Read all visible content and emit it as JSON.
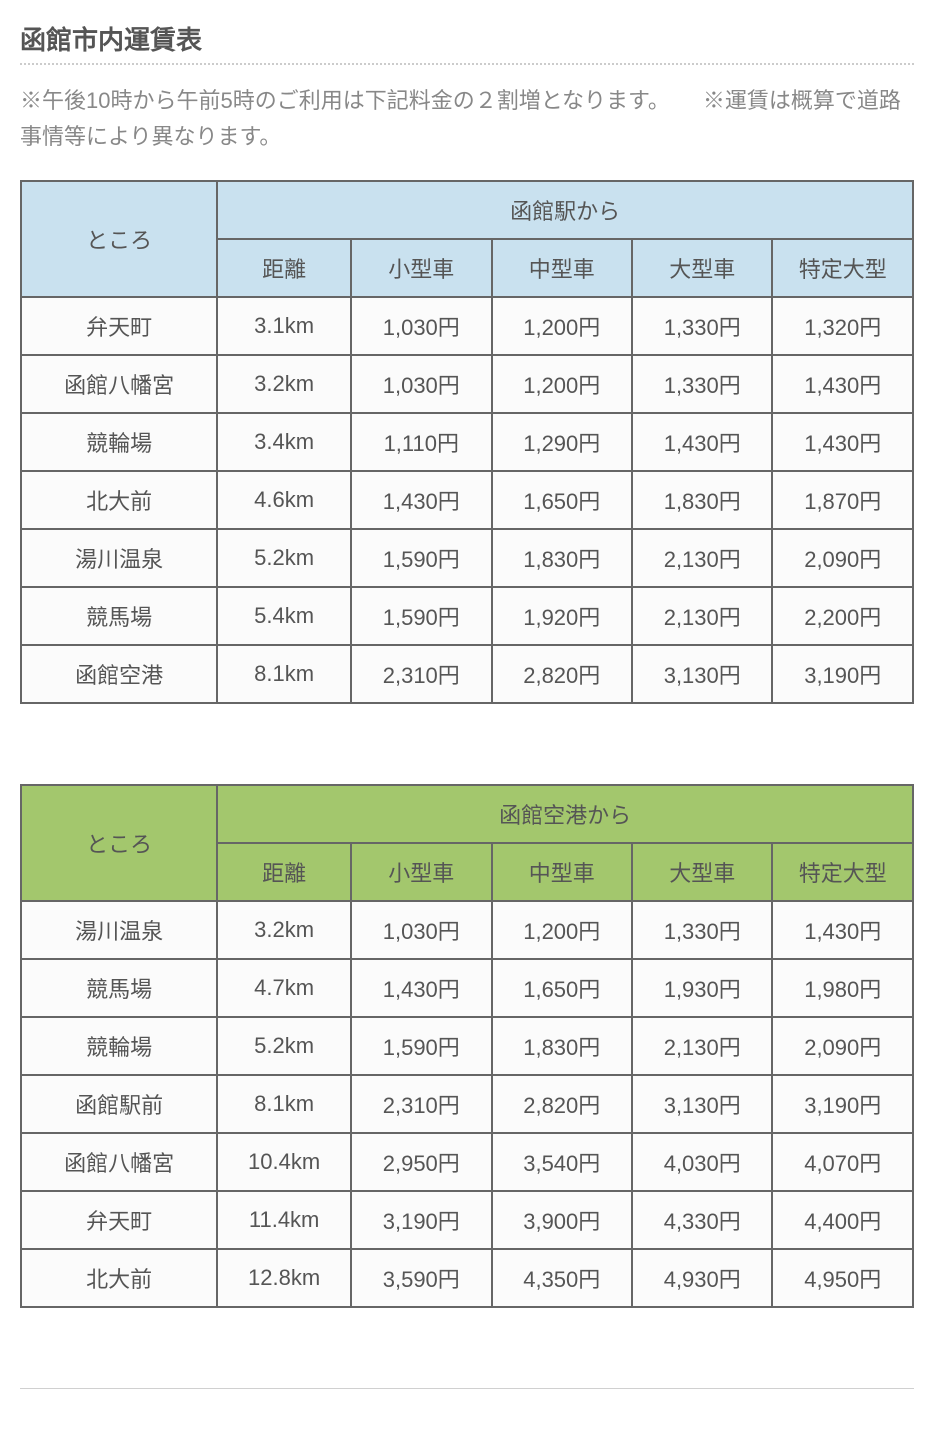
{
  "title": "函館市内運賃表",
  "note": "※午後10時から午前5時のご利用は下記料金の２割増となります。　　※運賃は概算で道路事情等により異なります。",
  "tables": [
    {
      "header_class": "th-blue",
      "place_header": "ところ",
      "from_header": "函館駅から",
      "sub_headers": [
        "距離",
        "小型車",
        "中型車",
        "大型車",
        "特定大型"
      ],
      "rows": [
        {
          "place": "弁天町",
          "dist": "3.1km",
          "v": [
            "1,030円",
            "1,200円",
            "1,330円",
            "1,320円"
          ]
        },
        {
          "place": "函館八幡宮",
          "dist": "3.2km",
          "v": [
            "1,030円",
            "1,200円",
            "1,330円",
            "1,430円"
          ]
        },
        {
          "place": "競輪場",
          "dist": "3.4km",
          "v": [
            "1,110円",
            "1,290円",
            "1,430円",
            "1,430円"
          ]
        },
        {
          "place": "北大前",
          "dist": "4.6km",
          "v": [
            "1,430円",
            "1,650円",
            "1,830円",
            "1,870円"
          ]
        },
        {
          "place": "湯川温泉",
          "dist": "5.2km",
          "v": [
            "1,590円",
            "1,830円",
            "2,130円",
            "2,090円"
          ]
        },
        {
          "place": "競馬場",
          "dist": "5.4km",
          "v": [
            "1,590円",
            "1,920円",
            "2,130円",
            "2,200円"
          ]
        },
        {
          "place": "函館空港",
          "dist": "8.1km",
          "v": [
            "2,310円",
            "2,820円",
            "3,130円",
            "3,190円"
          ]
        }
      ]
    },
    {
      "header_class": "th-green",
      "place_header": "ところ",
      "from_header": "函館空港から",
      "sub_headers": [
        "距離",
        "小型車",
        "中型車",
        "大型車",
        "特定大型"
      ],
      "rows": [
        {
          "place": "湯川温泉",
          "dist": "3.2km",
          "v": [
            "1,030円",
            "1,200円",
            "1,330円",
            "1,430円"
          ]
        },
        {
          "place": "競馬場",
          "dist": "4.7km",
          "v": [
            "1,430円",
            "1,650円",
            "1,930円",
            "1,980円"
          ]
        },
        {
          "place": "競輪場",
          "dist": "5.2km",
          "v": [
            "1,590円",
            "1,830円",
            "2,130円",
            "2,090円"
          ]
        },
        {
          "place": "函館駅前",
          "dist": "8.1km",
          "v": [
            "2,310円",
            "2,820円",
            "3,130円",
            "3,190円"
          ]
        },
        {
          "place": "函館八幡宮",
          "dist": "10.4km",
          "v": [
            "2,950円",
            "3,540円",
            "4,030円",
            "4,070円"
          ]
        },
        {
          "place": "弁天町",
          "dist": "11.4km",
          "v": [
            "3,190円",
            "3,900円",
            "4,330円",
            "4,400円"
          ]
        },
        {
          "place": "北大前",
          "dist": "12.8km",
          "v": [
            "3,590円",
            "4,350円",
            "4,930円",
            "4,950円"
          ]
        }
      ]
    }
  ]
}
